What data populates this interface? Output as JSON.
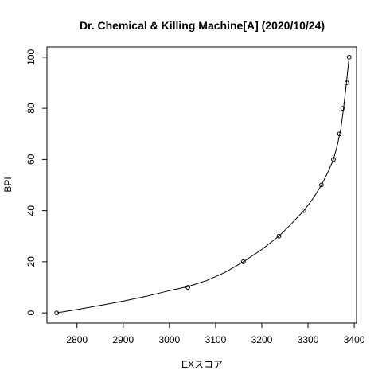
{
  "chart_data": {
    "type": "scatter",
    "title": "Dr. Chemical & Killing Machine[A] (2020/10/24)",
    "xlabel": "EXスコア",
    "ylabel": "BPI",
    "xlim": [
      2735,
      3405
    ],
    "ylim": [
      -4,
      104
    ],
    "xticks": [
      2800,
      2900,
      3000,
      3100,
      3200,
      3300,
      3400
    ],
    "yticks": [
      0,
      20,
      40,
      60,
      80,
      100
    ],
    "grid": false,
    "points": [
      {
        "x": 2756,
        "y": 0
      },
      {
        "x": 3040,
        "y": 10
      },
      {
        "x": 3160,
        "y": 20
      },
      {
        "x": 3237,
        "y": 30
      },
      {
        "x": 3291,
        "y": 40
      },
      {
        "x": 3329,
        "y": 50
      },
      {
        "x": 3355,
        "y": 60
      },
      {
        "x": 3368,
        "y": 70
      },
      {
        "x": 3375,
        "y": 80
      },
      {
        "x": 3384,
        "y": 90
      },
      {
        "x": 3389,
        "y": 100
      }
    ],
    "curve": [
      {
        "x": 2756,
        "y": 0
      },
      {
        "x": 2800,
        "y": 1.3
      },
      {
        "x": 2850,
        "y": 2.9
      },
      {
        "x": 2900,
        "y": 4.6
      },
      {
        "x": 2950,
        "y": 6.5
      },
      {
        "x": 3000,
        "y": 8.7
      },
      {
        "x": 3040,
        "y": 10.3
      },
      {
        "x": 3080,
        "y": 12.6
      },
      {
        "x": 3120,
        "y": 15.8
      },
      {
        "x": 3160,
        "y": 20
      },
      {
        "x": 3200,
        "y": 24.8
      },
      {
        "x": 3237,
        "y": 30
      },
      {
        "x": 3265,
        "y": 35
      },
      {
        "x": 3291,
        "y": 40
      },
      {
        "x": 3312,
        "y": 45
      },
      {
        "x": 3329,
        "y": 50
      },
      {
        "x": 3343,
        "y": 55
      },
      {
        "x": 3355,
        "y": 60
      },
      {
        "x": 3364,
        "y": 66
      },
      {
        "x": 3371,
        "y": 72
      },
      {
        "x": 3377,
        "y": 80
      },
      {
        "x": 3382,
        "y": 88
      },
      {
        "x": 3386,
        "y": 95
      },
      {
        "x": 3389,
        "y": 100
      }
    ]
  }
}
